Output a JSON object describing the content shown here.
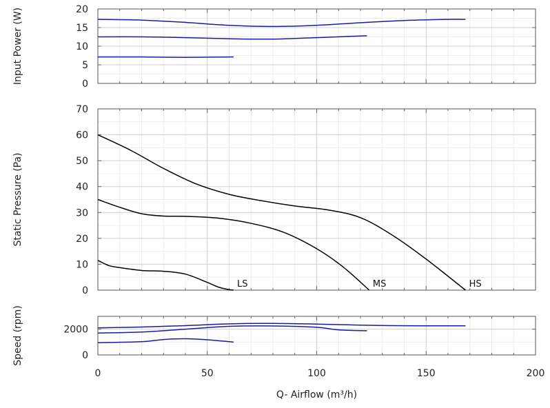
{
  "chart_data": [
    {
      "id": "power",
      "type": "line",
      "ylabel": "Input Power (W)",
      "ylim": [
        0,
        20
      ],
      "yticks": [
        0,
        5,
        10,
        15,
        20
      ],
      "xlim": [
        0,
        200
      ],
      "line_color": "#1a1aa0",
      "series": [
        {
          "x": [
            0,
            20,
            40,
            60,
            80,
            100,
            120,
            140,
            160,
            168
          ],
          "y": [
            17.2,
            17.0,
            16.4,
            15.6,
            15.3,
            15.6,
            16.3,
            16.9,
            17.2,
            17.2
          ]
        },
        {
          "x": [
            0,
            20,
            40,
            60,
            80,
            100,
            123
          ],
          "y": [
            12.5,
            12.5,
            12.3,
            12.0,
            11.9,
            12.3,
            12.8
          ]
        },
        {
          "x": [
            0,
            20,
            40,
            62
          ],
          "y": [
            7.1,
            7.1,
            7.0,
            7.1
          ]
        }
      ]
    },
    {
      "id": "pressure",
      "type": "line",
      "ylabel": "Static Pressure (Pa)",
      "ylim": [
        0,
        70
      ],
      "yticks": [
        0,
        10,
        20,
        30,
        40,
        50,
        60,
        70
      ],
      "xlim": [
        0,
        200
      ],
      "line_color": "#000000",
      "series": [
        {
          "name": "HS",
          "x": [
            0,
            15,
            30,
            45,
            60,
            75,
            90,
            105,
            120,
            135,
            150,
            168
          ],
          "y": [
            60,
            54,
            47,
            41,
            37,
            34.5,
            32.5,
            31,
            28,
            21,
            12,
            0
          ]
        },
        {
          "name": "MS",
          "x": [
            0,
            10,
            20,
            30,
            40,
            55,
            70,
            85,
            100,
            112,
            124
          ],
          "y": [
            35,
            32,
            29.5,
            28.6,
            28.5,
            27.8,
            25.8,
            22.3,
            16,
            9,
            0
          ]
        },
        {
          "name": "LS",
          "x": [
            0,
            5,
            10,
            20,
            30,
            40,
            50,
            55,
            60,
            62
          ],
          "y": [
            11.5,
            9.5,
            8.7,
            7.6,
            7.3,
            6.2,
            3.0,
            1.2,
            0.2,
            0
          ]
        }
      ],
      "annotations": [
        {
          "text": "LS",
          "x": 63,
          "y": 0
        },
        {
          "text": "MS",
          "x": 125,
          "y": 0
        },
        {
          "text": "HS",
          "x": 169,
          "y": 0
        }
      ]
    },
    {
      "id": "speed",
      "type": "line",
      "ylabel": "Speed (rpm)",
      "ylim": [
        0,
        3000
      ],
      "yticks": [
        0,
        2000
      ],
      "xlim": [
        0,
        200
      ],
      "xlabel": "Q- Airflow (m³/h)",
      "xticks": [
        0,
        50,
        100,
        150,
        200
      ],
      "line_color": "#1a1aa0",
      "series": [
        {
          "x": [
            0,
            20,
            40,
            60,
            80,
            100,
            120,
            140,
            160,
            168
          ],
          "y": [
            2100,
            2170,
            2280,
            2420,
            2450,
            2400,
            2320,
            2270,
            2260,
            2260
          ]
        },
        {
          "x": [
            0,
            20,
            40,
            60,
            80,
            100,
            110,
            123
          ],
          "y": [
            1700,
            1780,
            2000,
            2220,
            2250,
            2150,
            1950,
            1880
          ]
        },
        {
          "x": [
            0,
            20,
            30,
            40,
            50,
            62
          ],
          "y": [
            950,
            1030,
            1200,
            1260,
            1180,
            1000
          ]
        }
      ]
    }
  ]
}
